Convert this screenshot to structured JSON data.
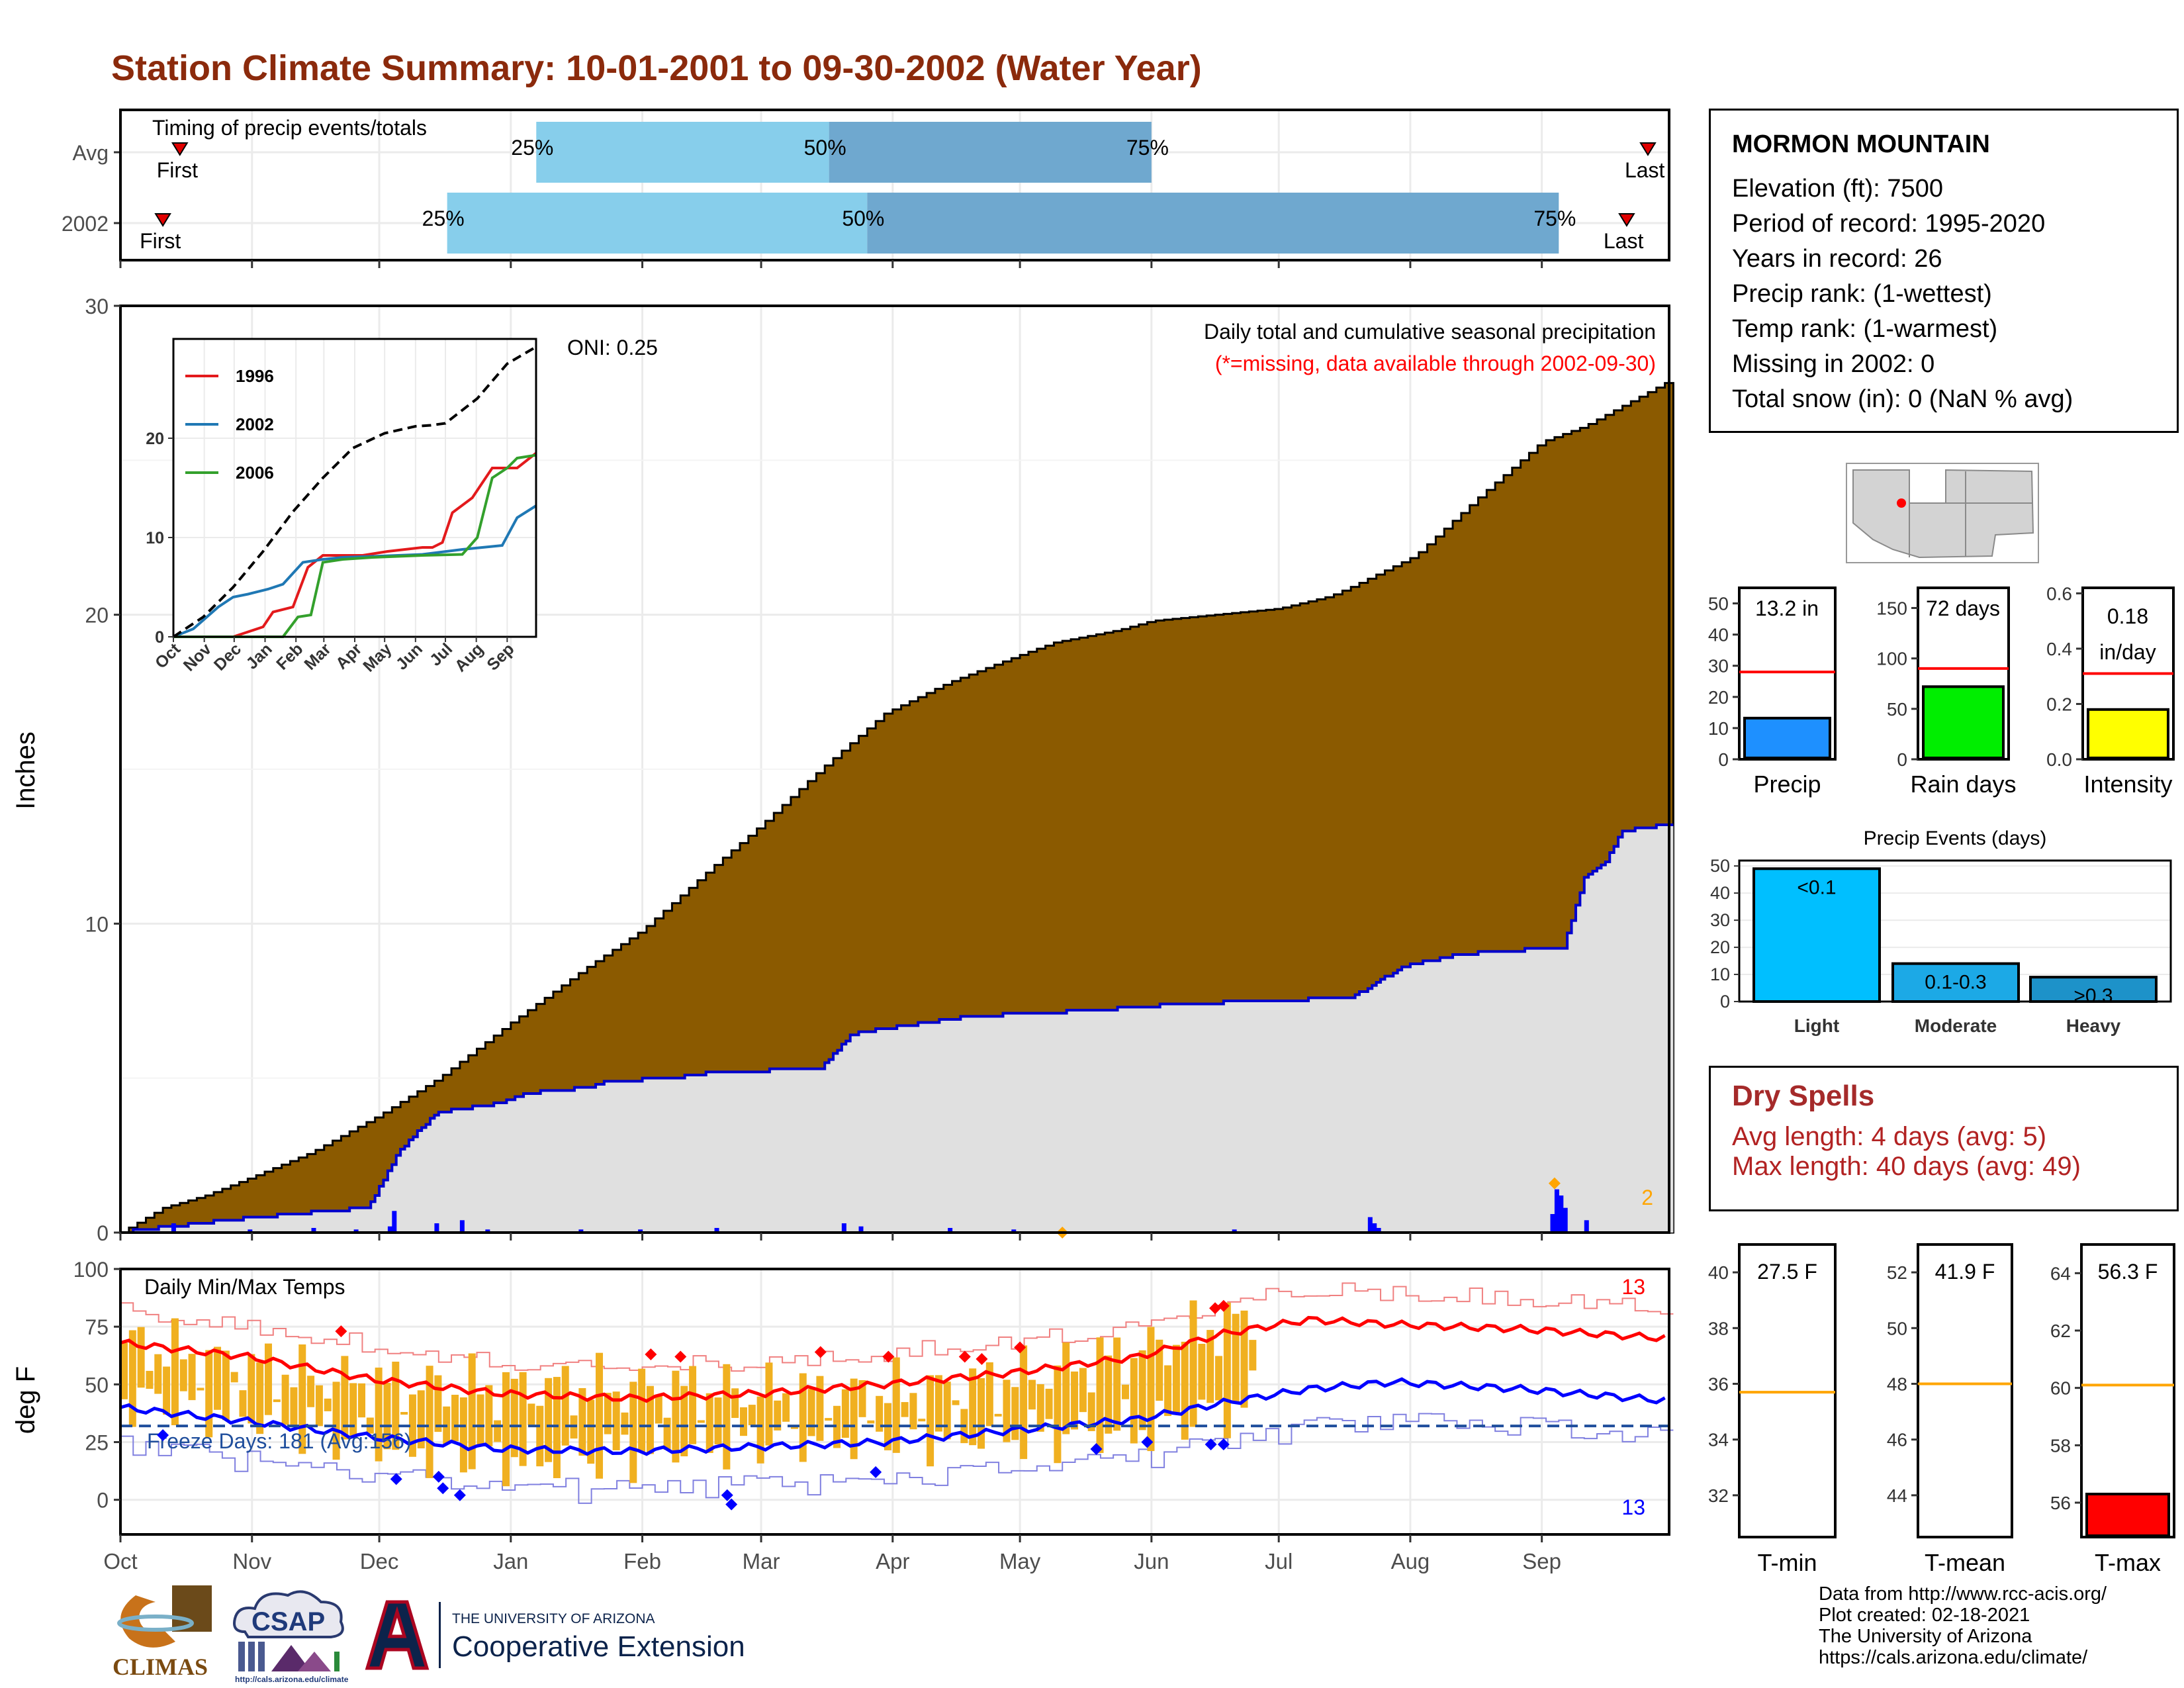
{
  "title": "Station Climate Summary: 10-01-2001 to 09-30-2002 (Water Year)",
  "timing": {
    "label": "Timing of precip events/totals",
    "rows": [
      {
        "name": "Avg",
        "first_doy": 14,
        "last_doy": 360,
        "p25": 98,
        "p50": 167,
        "p75": 243,
        "end": 243
      },
      {
        "name": "2002",
        "first_doy": 10,
        "last_doy": 355,
        "p25": 77,
        "p50": 176,
        "p75": 339,
        "end": 339
      }
    ],
    "first_label": "First",
    "last_label": "Last",
    "pct_labels": [
      "25%",
      "50%",
      "75%"
    ],
    "colors": {
      "light": "#87ceeb",
      "dark": "#6fa8cf",
      "marker": "#e00000"
    }
  },
  "station": {
    "name": "MORMON MOUNTAIN",
    "lines": [
      "Elevation (ft): 7500",
      "Period of record: 1995-2020",
      "Years in record: 26",
      "Precip rank:  (1-wettest)",
      "Temp rank:  (1-warmest)",
      "Missing in 2002: 0",
      "Total snow (in): 0 (NaN % avg)"
    ]
  },
  "chart_data": [
    {
      "type": "area",
      "title": "Daily total and cumulative seasonal precipitation",
      "subtitle": "(*=missing, data available through 2002-09-30)",
      "ylabel": "Inches",
      "ylim": [
        0,
        30
      ],
      "yticks": [
        0,
        10,
        20,
        30
      ],
      "oni": "ONI: 0.25",
      "max_label": "2",
      "series": [
        {
          "name": "avg cumulative",
          "color": "#8b5a00",
          "x": [
            0,
            10,
            20,
            31,
            45,
            61,
            75,
            92,
            110,
            123,
            140,
            151,
            165,
            180,
            195,
            212,
            220,
            235,
            243,
            258,
            273,
            285,
            290,
            305,
            320,
            335,
            345,
            364
          ],
          "y": [
            0,
            0.8,
            1.2,
            1.8,
            2.6,
            3.8,
            5.0,
            6.8,
            8.6,
            9.8,
            11.9,
            13.2,
            15.0,
            16.8,
            17.8,
            18.7,
            19.1,
            19.5,
            19.8,
            20.0,
            20.2,
            20.6,
            20.9,
            21.9,
            23.8,
            25.6,
            26.1,
            27.5
          ]
        },
        {
          "name": "2002 cumulative",
          "color": "#0000cd",
          "x": [
            0,
            12,
            25,
            40,
            58,
            60,
            65,
            70,
            75,
            90,
            95,
            110,
            115,
            130,
            140,
            165,
            169,
            172,
            180,
            190,
            200,
            230,
            250,
            290,
            295,
            302,
            315,
            335,
            340,
            345,
            350,
            354,
            364
          ],
          "y": [
            0,
            0.2,
            0.4,
            0.6,
            0.8,
            1.2,
            2.5,
            3.3,
            3.9,
            4.2,
            4.5,
            4.7,
            4.9,
            5.0,
            5.2,
            5.3,
            5.9,
            6.4,
            6.6,
            6.8,
            7.0,
            7.2,
            7.4,
            7.6,
            8.0,
            8.6,
            9.0,
            9.2,
            9.2,
            11.5,
            12.0,
            13.0,
            13.2
          ]
        }
      ],
      "daily_bars": {
        "color": "#0000ff",
        "x": [
          12,
          30,
          45,
          55,
          63,
          64,
          74,
          80,
          86,
          108,
          122,
          140,
          170,
          174,
          195,
          210,
          262,
          294,
          295,
          296,
          337,
          338,
          339,
          340,
          345
        ],
        "y": [
          0.3,
          0.1,
          0.15,
          0.1,
          0.2,
          0.7,
          0.3,
          0.4,
          0.1,
          0.1,
          0.1,
          0.15,
          0.3,
          0.2,
          0.15,
          0.1,
          0.1,
          0.5,
          0.3,
          0.15,
          0.6,
          1.4,
          1.2,
          0.8,
          0.4
        ]
      }
    },
    {
      "type": "line",
      "title": "",
      "ylim": [
        0,
        30
      ],
      "yticks": [
        0,
        10,
        20
      ],
      "categories": [
        "Oct",
        "Nov",
        "Dec",
        "Jan",
        "Feb",
        "Mar",
        "Apr",
        "May",
        "Jun",
        "Jul",
        "Aug",
        "Sep"
      ],
      "series": [
        {
          "name": "1996",
          "color": "#e31a1c",
          "x": [
            0,
            60,
            75,
            90,
            100,
            120,
            135,
            150,
            190,
            215,
            250,
            260,
            270,
            280,
            300,
            320,
            345,
            364
          ],
          "y": [
            0,
            0,
            0.5,
            1.0,
            2.5,
            3.0,
            7.0,
            8.2,
            8.2,
            8.6,
            9.0,
            9.0,
            9.5,
            12.5,
            14.0,
            17.0,
            17.0,
            18.5
          ]
        },
        {
          "name": "2002",
          "color": "#1f78b4",
          "x": [
            0,
            20,
            45,
            60,
            75,
            95,
            110,
            130,
            150,
            170,
            200,
            250,
            290,
            310,
            330,
            345,
            364
          ],
          "y": [
            0,
            0.8,
            3.0,
            4.0,
            4.3,
            4.8,
            5.3,
            7.5,
            7.8,
            8.0,
            8.1,
            8.3,
            8.8,
            9.0,
            9.2,
            12.0,
            13.2
          ]
        },
        {
          "name": "2006",
          "color": "#33a02c",
          "x": [
            0,
            110,
            125,
            138,
            150,
            170,
            200,
            250,
            290,
            305,
            320,
            335,
            345,
            364
          ],
          "y": [
            0,
            0,
            2.0,
            2.2,
            7.5,
            7.8,
            8.0,
            8.2,
            8.3,
            10.0,
            16.0,
            17.0,
            18.0,
            18.3
          ]
        },
        {
          "name": "avg",
          "color": "#000000",
          "dashed": true,
          "x": [
            0,
            30,
            60,
            90,
            120,
            150,
            180,
            212,
            243,
            258,
            273,
            305,
            335,
            364
          ],
          "y": [
            0,
            2.0,
            5.0,
            8.6,
            12.6,
            16.0,
            19.0,
            20.5,
            21.2,
            21.3,
            21.5,
            24.0,
            27.5,
            29.2
          ]
        }
      ]
    },
    {
      "type": "bar",
      "title": "",
      "panels": [
        {
          "label": "Precip",
          "value_label": "13.2 in",
          "value": 13.2,
          "avg": 28,
          "ylim": [
            0,
            55
          ],
          "yticks": [
            0,
            10,
            20,
            30,
            40,
            50
          ],
          "color": "#1e90ff"
        },
        {
          "label": "Rain days",
          "value_label": "72 days",
          "value": 72,
          "avg": 90,
          "ylim": [
            0,
            170
          ],
          "yticks": [
            0,
            50,
            100,
            150
          ],
          "color": "#00ee00"
        },
        {
          "label": "Intensity",
          "value_label": "0.18 in/day",
          "value": 0.18,
          "avg": 0.31,
          "ylim": [
            0,
            0.62
          ],
          "yticks": [
            "0.0",
            "0.2",
            "0.4",
            "0.6"
          ],
          "color": "#ffff00"
        }
      ]
    },
    {
      "type": "bar",
      "title": "Precip Events (days)",
      "categories": [
        "Light",
        "Moderate",
        "Heavy"
      ],
      "bar_labels": [
        "<0.1",
        "0.1-0.3",
        ">0.3"
      ],
      "values": [
        49,
        14,
        9
      ],
      "ylim": [
        0,
        52
      ],
      "yticks": [
        0,
        10,
        20,
        30,
        40,
        50
      ],
      "colors": [
        "#00bfff",
        "#1ca9e6",
        "#1d92c9"
      ]
    },
    {
      "type": "line",
      "title": "Daily Min/Max Temps",
      "ylabel": "deg F",
      "ylim": [
        -15,
        100
      ],
      "yticks": [
        0,
        25,
        50,
        75,
        100
      ],
      "freeze_label": "Freeze Days: 181 (Avg:156)",
      "freeze_level": 32,
      "record_high_label": "13",
      "record_low_label": "13",
      "series": [
        {
          "name": "avg tmax",
          "color": "#ff0000",
          "x": [
            0,
            30,
            60,
            90,
            120,
            150,
            180,
            210,
            240,
            260,
            280,
            300,
            330,
            364
          ],
          "y": [
            68,
            62,
            52,
            46,
            44,
            46,
            50,
            55,
            62,
            72,
            78,
            76,
            74,
            70
          ]
        },
        {
          "name": "avg tmin",
          "color": "#0000ff",
          "x": [
            0,
            30,
            60,
            90,
            120,
            150,
            180,
            210,
            240,
            260,
            280,
            300,
            330,
            364
          ],
          "y": [
            40,
            34,
            27,
            22,
            21,
            23,
            25,
            30,
            35,
            42,
            48,
            51,
            48,
            43
          ]
        }
      ],
      "colors": {
        "range_bars": "#f0b020",
        "record_high": "#f08080",
        "record_low": "#8080e0",
        "freeze": "#1f4e9c"
      }
    },
    {
      "type": "bar",
      "title": "",
      "panels": [
        {
          "label": "T-min",
          "value_label": "27.5 F",
          "value": 27.5,
          "avg": 35.7,
          "ylim": [
            30.5,
            41
          ],
          "yticks": [
            32,
            34,
            36,
            38,
            40
          ],
          "color": "#ff0000"
        },
        {
          "label": "T-mean",
          "value_label": "41.9 F",
          "value": 41.9,
          "avg": 48,
          "ylim": [
            42.5,
            53
          ],
          "yticks": [
            44,
            46,
            48,
            50,
            52
          ],
          "color": "#ff0000"
        },
        {
          "label": "T-max",
          "value_label": "56.3 F",
          "value": 56.3,
          "avg": 60.1,
          "ylim": [
            54.8,
            65
          ],
          "yticks": [
            56,
            58,
            60,
            62,
            64
          ],
          "color": "#ff0000"
        }
      ]
    }
  ],
  "months": [
    "Oct",
    "Nov",
    "Dec",
    "Jan",
    "Feb",
    "Mar",
    "Apr",
    "May",
    "Jun",
    "Jul",
    "Aug",
    "Sep"
  ],
  "dry_spells": {
    "title": "Dry Spells",
    "lines": [
      "Avg length: 4 days (avg: 5)",
      "Max length: 40 days (avg: 49)"
    ]
  },
  "credits": [
    "Data from http://www.rcc-acis.org/",
    "Plot created: 02-18-2021",
    "The University of Arizona",
    "https://cals.arizona.edu/climate/"
  ],
  "logos": {
    "climas": "CLIMAS",
    "csap": "CSAP",
    "csap_url": "http://cals.arizona.edu/climate",
    "ua_top": "THE UNIVERSITY OF ARIZONA",
    "ua_bottom": "Cooperative Extension"
  }
}
